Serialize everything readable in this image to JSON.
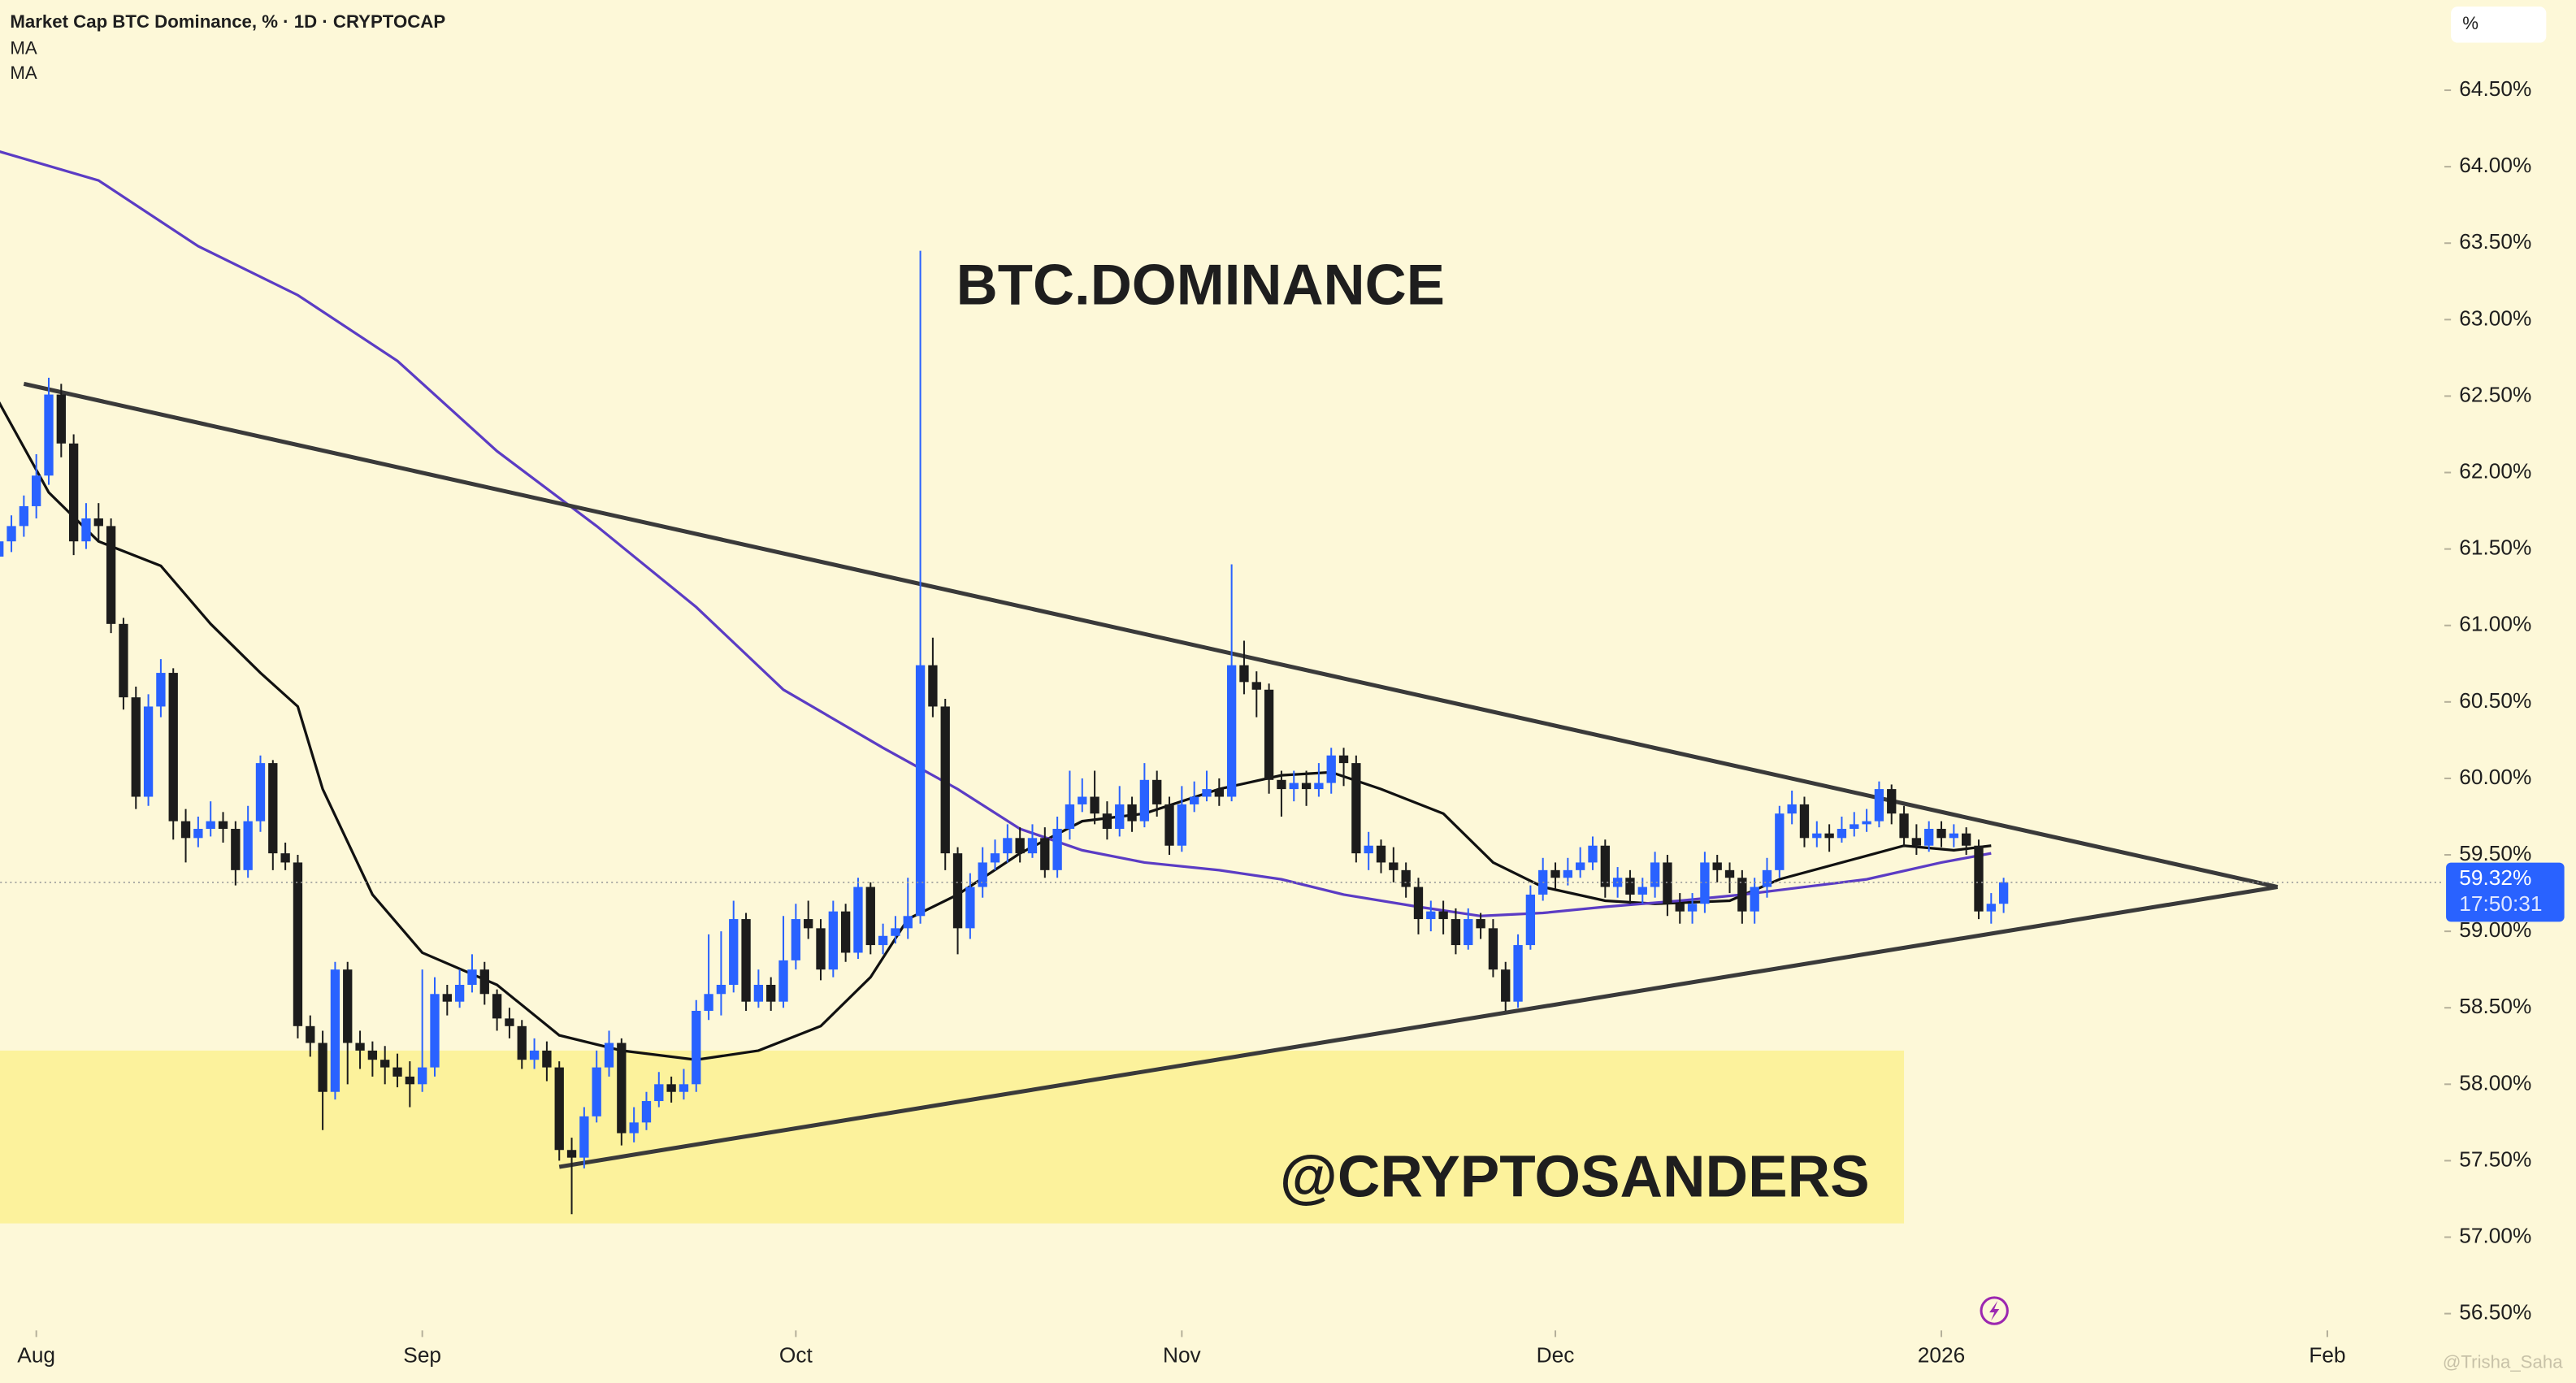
{
  "chart_data": {
    "type": "candlestick",
    "title": "Market Cap BTC Dominance, % · 1D · CRYPTOCAP",
    "unit_label": "%",
    "annotations": [
      "BTC.DOMINANCE",
      "@CRYPTOSANDERS"
    ],
    "watermark": "@Trisha_Saha",
    "last_price_label": "59.32%",
    "countdown": "17:50:31",
    "up_color": "#2962ff",
    "down_color": "#1c1c1c",
    "xlim": [
      0.1,
      196.4
    ],
    "xticks": [
      {
        "value": 3,
        "label": "Aug"
      },
      {
        "value": 34,
        "label": "Sep"
      },
      {
        "value": 64,
        "label": "Oct"
      },
      {
        "value": 95,
        "label": "Nov"
      },
      {
        "value": 125,
        "label": "Dec"
      },
      {
        "value": 156,
        "label": "2026"
      },
      {
        "value": 187,
        "label": "Feb"
      }
    ],
    "ylim": [
      56.39,
      65.09
    ],
    "yticks": [
      {
        "value": 56.5,
        "label": "56.50%"
      },
      {
        "value": 57,
        "label": "57.00%"
      },
      {
        "value": 57.5,
        "label": "57.50%"
      },
      {
        "value": 58,
        "label": "58.00%"
      },
      {
        "value": 58.5,
        "label": "58.50%"
      },
      {
        "value": 59,
        "label": "59.00%"
      },
      {
        "value": 59.5,
        "label": "59.50%"
      },
      {
        "value": 60,
        "label": "60.00%"
      },
      {
        "value": 60.5,
        "label": "60.50%"
      },
      {
        "value": 61,
        "label": "61.00%"
      },
      {
        "value": 61.5,
        "label": "61.50%"
      },
      {
        "value": 62,
        "label": "62.00%"
      },
      {
        "value": 62.5,
        "label": "62.50%"
      },
      {
        "value": 63,
        "label": "63.00%"
      },
      {
        "value": 63.5,
        "label": "63.50%"
      },
      {
        "value": 64,
        "label": "64.00%"
      },
      {
        "value": 64.5,
        "label": "64.50%"
      }
    ],
    "x": [
      0,
      1,
      2,
      3,
      4,
      5,
      6,
      7,
      8,
      9,
      10,
      11,
      12,
      13,
      14,
      15,
      16,
      17,
      18,
      19,
      20,
      21,
      22,
      23,
      24,
      25,
      26,
      27,
      28,
      29,
      30,
      31,
      32,
      33,
      34,
      35,
      36,
      37,
      38,
      39,
      40,
      41,
      42,
      43,
      44,
      45,
      46,
      47,
      48,
      49,
      50,
      51,
      52,
      53,
      54,
      55,
      56,
      57,
      58,
      59,
      60,
      61,
      62,
      63,
      64,
      65,
      66,
      67,
      68,
      69,
      70,
      71,
      72,
      73,
      74,
      75,
      76,
      77,
      78,
      79,
      80,
      81,
      82,
      83,
      84,
      85,
      86,
      87,
      88,
      89,
      90,
      91,
      92,
      93,
      94,
      95,
      96,
      97,
      98,
      99,
      100,
      101,
      102,
      103,
      104,
      105,
      106,
      107,
      108,
      109,
      110,
      111,
      112,
      113,
      114,
      115,
      116,
      117,
      118,
      119,
      120,
      121,
      122,
      123,
      124,
      125,
      126,
      127,
      128,
      129,
      130,
      131,
      132,
      133,
      134,
      135,
      136,
      137,
      138,
      139,
      140,
      141,
      142,
      143,
      144,
      145,
      146,
      147,
      148,
      149,
      150,
      151,
      152,
      153,
      154,
      155,
      156,
      157,
      158,
      159,
      160,
      161
    ],
    "open": [
      61.45,
      61.55,
      61.65,
      61.78,
      61.98,
      62.51,
      62.19,
      61.55,
      61.7,
      61.65,
      61.01,
      60.53,
      59.88,
      60.47,
      60.69,
      59.72,
      59.61,
      59.67,
      59.72,
      59.67,
      59.4,
      59.72,
      60.1,
      59.51,
      59.45,
      58.38,
      58.27,
      57.95,
      58.75,
      58.27,
      58.22,
      58.16,
      58.11,
      58.05,
      58.0,
      58.11,
      58.59,
      58.54,
      58.65,
      58.75,
      58.59,
      58.43,
      58.38,
      58.16,
      58.22,
      58.11,
      57.57,
      57.52,
      57.79,
      58.11,
      58.27,
      57.68,
      57.75,
      57.89,
      58.0,
      57.95,
      58.0,
      58.48,
      58.59,
      58.65,
      59.08,
      58.54,
      58.65,
      58.54,
      58.81,
      59.08,
      59.02,
      58.75,
      59.13,
      58.86,
      59.29,
      58.91,
      58.97,
      59.02,
      59.1,
      60.74,
      60.47,
      59.51,
      59.02,
      59.29,
      59.45,
      59.51,
      59.61,
      59.51,
      59.61,
      59.4,
      59.67,
      59.83,
      59.88,
      59.77,
      59.67,
      59.83,
      59.72,
      59.99,
      59.83,
      59.56,
      59.83,
      59.88,
      59.93,
      59.88,
      60.74,
      60.63,
      60.58,
      59.99,
      59.93,
      59.97,
      59.93,
      59.97,
      60.15,
      60.1,
      59.51,
      59.56,
      59.45,
      59.4,
      59.29,
      59.08,
      59.13,
      59.08,
      58.91,
      59.08,
      59.02,
      58.75,
      58.54,
      58.91,
      59.24,
      59.4,
      59.35,
      59.4,
      59.45,
      59.56,
      59.29,
      59.35,
      59.24,
      59.29,
      59.45,
      59.18,
      59.13,
      59.18,
      59.45,
      59.4,
      59.35,
      59.13,
      59.29,
      59.4,
      59.77,
      59.83,
      59.61,
      59.64,
      59.61,
      59.67,
      59.7,
      59.72,
      59.93,
      59.77,
      59.61,
      59.56,
      59.67,
      59.61,
      59.64,
      59.56,
      59.13,
      59.18
    ],
    "high": [
      61.62,
      61.72,
      61.85,
      62.12,
      62.62,
      62.58,
      62.25,
      61.8,
      61.8,
      61.7,
      61.05,
      60.6,
      60.55,
      60.78,
      60.72,
      59.8,
      59.75,
      59.85,
      59.78,
      59.72,
      59.82,
      60.15,
      60.12,
      59.58,
      59.5,
      58.45,
      58.35,
      58.8,
      58.8,
      58.35,
      58.28,
      58.25,
      58.2,
      58.15,
      58.75,
      58.7,
      58.65,
      58.75,
      58.85,
      58.8,
      58.62,
      58.5,
      58.42,
      58.3,
      58.28,
      58.15,
      57.65,
      57.85,
      58.22,
      58.35,
      58.3,
      57.85,
      57.95,
      58.08,
      58.05,
      58.1,
      58.55,
      58.98,
      59.0,
      59.2,
      59.12,
      58.75,
      58.7,
      59.1,
      59.18,
      59.2,
      59.08,
      59.2,
      59.18,
      59.35,
      59.32,
      59.05,
      59.1,
      59.35,
      63.45,
      60.92,
      60.52,
      59.55,
      59.38,
      59.55,
      59.6,
      59.7,
      59.68,
      59.7,
      59.68,
      59.75,
      60.05,
      60.0,
      60.05,
      59.85,
      59.95,
      59.88,
      60.1,
      60.05,
      59.88,
      59.95,
      59.98,
      60.05,
      60.0,
      61.4,
      60.9,
      60.7,
      60.62,
      60.05,
      60.05,
      60.05,
      60.1,
      60.2,
      60.2,
      60.15,
      59.65,
      59.6,
      59.55,
      59.45,
      59.35,
      59.2,
      59.2,
      59.15,
      59.15,
      59.12,
      59.08,
      58.8,
      58.98,
      59.3,
      59.48,
      59.45,
      59.48,
      59.55,
      59.62,
      59.6,
      59.42,
      59.4,
      59.35,
      59.52,
      59.5,
      59.25,
      59.25,
      59.52,
      59.5,
      59.45,
      59.4,
      59.35,
      59.48,
      59.82,
      59.92,
      59.88,
      59.72,
      59.7,
      59.75,
      59.78,
      59.8,
      59.98,
      59.96,
      59.82,
      59.7,
      59.72,
      59.72,
      59.7,
      59.68,
      59.6,
      59.25,
      59.35
    ],
    "low": [
      61.38,
      61.48,
      61.58,
      61.7,
      61.92,
      62.1,
      61.46,
      61.5,
      61.55,
      60.95,
      60.45,
      59.8,
      59.82,
      60.4,
      59.6,
      59.45,
      59.55,
      59.62,
      59.58,
      59.3,
      59.35,
      59.65,
      59.4,
      59.4,
      58.3,
      58.18,
      57.7,
      57.9,
      58.0,
      58.1,
      58.05,
      58.0,
      57.98,
      57.85,
      57.95,
      58.05,
      58.45,
      58.5,
      58.6,
      58.52,
      58.35,
      58.3,
      58.1,
      58.1,
      58.02,
      57.5,
      57.15,
      57.45,
      57.75,
      58.05,
      57.6,
      57.62,
      57.7,
      57.85,
      57.88,
      57.9,
      57.95,
      58.42,
      58.45,
      58.6,
      58.48,
      58.5,
      58.48,
      58.5,
      58.75,
      58.95,
      58.68,
      58.7,
      58.8,
      58.82,
      58.85,
      58.85,
      58.92,
      58.95,
      59.05,
      60.4,
      59.4,
      58.85,
      58.95,
      59.22,
      59.4,
      59.45,
      59.45,
      59.48,
      59.35,
      59.35,
      59.6,
      59.78,
      59.7,
      59.6,
      59.62,
      59.65,
      59.68,
      59.75,
      59.5,
      59.52,
      59.78,
      59.85,
      59.82,
      59.85,
      60.55,
      60.4,
      59.9,
      59.75,
      59.85,
      59.82,
      59.88,
      59.9,
      59.95,
      59.45,
      59.4,
      59.38,
      59.32,
      59.22,
      58.98,
      59.0,
      58.98,
      58.85,
      58.88,
      58.95,
      58.7,
      58.48,
      58.5,
      58.88,
      59.2,
      59.28,
      59.3,
      59.35,
      59.4,
      59.22,
      59.22,
      59.18,
      59.18,
      59.22,
      59.1,
      59.05,
      59.05,
      59.12,
      59.32,
      59.25,
      59.05,
      59.05,
      59.22,
      59.35,
      59.7,
      59.55,
      59.55,
      59.52,
      59.58,
      59.62,
      59.65,
      59.68,
      59.7,
      59.55,
      59.5,
      59.52,
      59.55,
      59.55,
      59.5,
      59.08,
      59.05,
      59.12
    ],
    "close": [
      61.55,
      61.65,
      61.78,
      61.98,
      62.51,
      62.19,
      61.55,
      61.7,
      61.65,
      61.01,
      60.53,
      59.88,
      60.47,
      60.69,
      59.72,
      59.61,
      59.67,
      59.72,
      59.67,
      59.4,
      59.72,
      60.1,
      59.51,
      59.45,
      58.38,
      58.27,
      57.95,
      58.75,
      58.27,
      58.22,
      58.16,
      58.11,
      58.05,
      58.0,
      58.11,
      58.59,
      58.54,
      58.65,
      58.75,
      58.59,
      58.43,
      58.38,
      58.16,
      58.22,
      58.11,
      57.57,
      57.52,
      57.79,
      58.11,
      58.27,
      57.68,
      57.75,
      57.89,
      58.0,
      57.95,
      58.0,
      58.48,
      58.59,
      58.65,
      59.08,
      58.54,
      58.65,
      58.54,
      58.81,
      59.08,
      59.02,
      58.75,
      59.13,
      58.86,
      59.29,
      58.91,
      58.97,
      59.02,
      59.1,
      60.74,
      60.47,
      59.51,
      59.02,
      59.29,
      59.45,
      59.51,
      59.61,
      59.51,
      59.61,
      59.4,
      59.67,
      59.83,
      59.88,
      59.77,
      59.67,
      59.83,
      59.72,
      59.99,
      59.83,
      59.56,
      59.83,
      59.88,
      59.93,
      59.88,
      60.74,
      60.63,
      60.58,
      59.99,
      59.93,
      59.97,
      59.93,
      59.97,
      60.15,
      60.1,
      59.51,
      59.56,
      59.45,
      59.4,
      59.29,
      59.08,
      59.13,
      59.08,
      58.91,
      59.08,
      59.02,
      58.75,
      58.54,
      58.91,
      59.24,
      59.4,
      59.35,
      59.4,
      59.45,
      59.56,
      59.29,
      59.35,
      59.24,
      59.29,
      59.45,
      59.18,
      59.13,
      59.18,
      59.45,
      59.4,
      59.35,
      59.13,
      59.29,
      59.4,
      59.77,
      59.83,
      59.61,
      59.64,
      59.61,
      59.67,
      59.7,
      59.72,
      59.93,
      59.77,
      59.61,
      59.56,
      59.67,
      59.61,
      59.64,
      59.56,
      59.13,
      59.18,
      59.32
    ],
    "series": [
      {
        "name": "MA",
        "color": "#111111",
        "x": [
          0,
          4,
          8,
          13,
          17,
          21,
          24,
          26,
          30,
          34,
          40,
          45,
          50,
          56,
          61,
          66,
          70,
          73,
          77,
          82,
          87,
          92,
          98,
          103,
          107,
          111,
          116,
          120,
          124,
          129,
          133,
          139,
          143,
          148,
          153,
          157,
          160
        ],
        "values": [
          62.46,
          61.87,
          61.55,
          61.39,
          61.01,
          60.69,
          60.47,
          59.93,
          59.24,
          58.86,
          58.65,
          58.32,
          58.22,
          58.16,
          58.22,
          58.38,
          58.7,
          59.08,
          59.24,
          59.51,
          59.72,
          59.77,
          59.93,
          60.02,
          60.04,
          59.93,
          59.77,
          59.45,
          59.29,
          59.2,
          59.18,
          59.2,
          59.34,
          59.45,
          59.56,
          59.53,
          59.56
        ]
      },
      {
        "name": "MA",
        "color": "#5b3cc4",
        "x": [
          0,
          8,
          16,
          24,
          32,
          40,
          48,
          56,
          63,
          71,
          77,
          82,
          87,
          92,
          98,
          103,
          108,
          114,
          119,
          124,
          129,
          135,
          140,
          145,
          150,
          156,
          160
        ],
        "values": [
          64.1,
          63.91,
          63.48,
          63.16,
          62.73,
          62.14,
          61.65,
          61.12,
          60.58,
          60.2,
          59.93,
          59.67,
          59.53,
          59.45,
          59.4,
          59.34,
          59.24,
          59.16,
          59.1,
          59.12,
          59.16,
          59.2,
          59.24,
          59.29,
          59.34,
          59.45,
          59.51
        ]
      }
    ],
    "trendlines": [
      {
        "color": "#3a3a3a",
        "x": [
          2,
          183
        ],
        "values": [
          62.58,
          59.29
        ]
      },
      {
        "color": "#3a3a3a",
        "x": [
          45,
          183
        ],
        "values": [
          57.46,
          59.29
        ]
      }
    ],
    "zone": {
      "color": "#fcf29c",
      "x": [
        0,
        153
      ],
      "values": [
        58.22,
        57.09
      ]
    }
  }
}
